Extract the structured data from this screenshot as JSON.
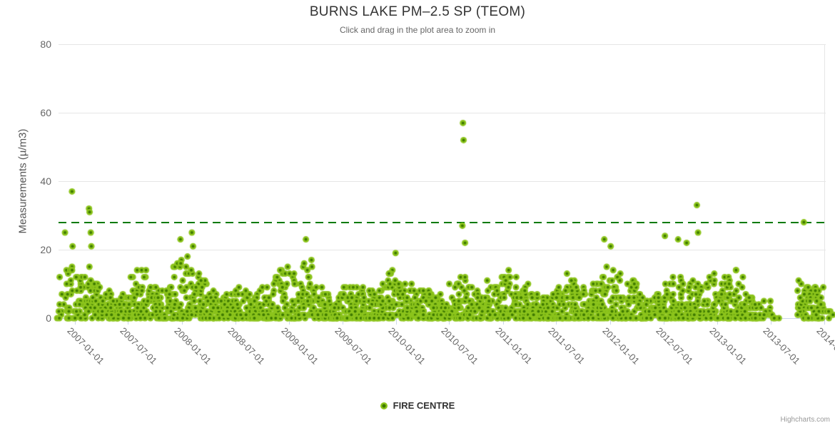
{
  "chart_data": {
    "type": "scatter",
    "title": "BURNS LAKE PM–2.5 SP (TEOM)",
    "subtitle": "Click and drag in the plot area to zoom in",
    "ylabel": "Measurements (µ/m3)",
    "ylim": [
      0,
      80
    ],
    "yticks": [
      0,
      20,
      40,
      60,
      80
    ],
    "xticks": [
      "2007-01-01",
      "2007-07-01",
      "2008-01-01",
      "2008-07-01",
      "2009-01-01",
      "2009-07-01",
      "2010-01-01",
      "2010-07-01",
      "2011-01-01",
      "2011-07-01",
      "2012-01-01",
      "2012-07-01",
      "2013-01-01",
      "2013-07-01",
      "2014-01-01"
    ],
    "x_range": [
      "2006-11-06",
      "2014-01-05"
    ],
    "grid": "horizontal",
    "legend_position": "bottom-center",
    "credits": "Highcharts.com",
    "threshold_line": {
      "value": 28,
      "color": "#007a00",
      "style": "dashed"
    },
    "data_gaps": [
      "2013-07-15 to 2013-10-01"
    ],
    "colors": {
      "marker_outer": "#8cc41c",
      "marker_inner": "#3e7a00",
      "threshold": "#007a00",
      "grid": "#e6e6e6",
      "axis": "#ccd6eb"
    },
    "series": [
      {
        "name": "FIRE CENTRE",
        "marker": "circle-with-dark-center",
        "monthly_density": [
          [
            "2006-11",
            10,
            12
          ],
          [
            "2006-12",
            22,
            16
          ],
          [
            "2007-01",
            26,
            12
          ],
          [
            "2007-02",
            24,
            15
          ],
          [
            "2007-03",
            27,
            10
          ],
          [
            "2007-04",
            26,
            8
          ],
          [
            "2007-05",
            27,
            7
          ],
          [
            "2007-06",
            26,
            8
          ],
          [
            "2007-07",
            27,
            13
          ],
          [
            "2007-08",
            27,
            15
          ],
          [
            "2007-09",
            26,
            10
          ],
          [
            "2007-10",
            27,
            9
          ],
          [
            "2007-11",
            26,
            10
          ],
          [
            "2007-12",
            27,
            17
          ],
          [
            "2008-01",
            27,
            16
          ],
          [
            "2008-02",
            25,
            15
          ],
          [
            "2008-03",
            27,
            11
          ],
          [
            "2008-04",
            26,
            8
          ],
          [
            "2008-05",
            27,
            7
          ],
          [
            "2008-06",
            26,
            8
          ],
          [
            "2008-07",
            27,
            9
          ],
          [
            "2008-08",
            27,
            8
          ],
          [
            "2008-09",
            26,
            9
          ],
          [
            "2008-10",
            27,
            10
          ],
          [
            "2008-11",
            26,
            12
          ],
          [
            "2008-12",
            27,
            16
          ],
          [
            "2009-01",
            27,
            13
          ],
          [
            "2009-02",
            24,
            16
          ],
          [
            "2009-03",
            27,
            16
          ],
          [
            "2009-04",
            26,
            9
          ],
          [
            "2009-05",
            27,
            7
          ],
          [
            "2009-06",
            26,
            8
          ],
          [
            "2009-07",
            27,
            9
          ],
          [
            "2009-08",
            27,
            11
          ],
          [
            "2009-09",
            26,
            9
          ],
          [
            "2009-10",
            27,
            8
          ],
          [
            "2009-11",
            26,
            10
          ],
          [
            "2009-12",
            27,
            14
          ],
          [
            "2010-01",
            27,
            13
          ],
          [
            "2010-02",
            24,
            11
          ],
          [
            "2010-03",
            27,
            9
          ],
          [
            "2010-04",
            26,
            8
          ],
          [
            "2010-05",
            27,
            7
          ],
          [
            "2010-06",
            26,
            9
          ],
          [
            "2010-07",
            27,
            11
          ],
          [
            "2010-08",
            27,
            13
          ],
          [
            "2010-09",
            26,
            9
          ],
          [
            "2010-10",
            27,
            9
          ],
          [
            "2010-11",
            26,
            11
          ],
          [
            "2010-12",
            27,
            13
          ],
          [
            "2011-01",
            27,
            15
          ],
          [
            "2011-02",
            24,
            12
          ],
          [
            "2011-03",
            27,
            11
          ],
          [
            "2011-04",
            26,
            8
          ],
          [
            "2011-05",
            27,
            7
          ],
          [
            "2011-06",
            26,
            8
          ],
          [
            "2011-07",
            27,
            10
          ],
          [
            "2011-08",
            27,
            13
          ],
          [
            "2011-09",
            26,
            9
          ],
          [
            "2011-10",
            27,
            9
          ],
          [
            "2011-11",
            26,
            11
          ],
          [
            "2011-12",
            27,
            16
          ],
          [
            "2012-01",
            27,
            15
          ],
          [
            "2012-02",
            25,
            13
          ],
          [
            "2012-03",
            27,
            11
          ],
          [
            "2012-04",
            26,
            8
          ],
          [
            "2012-05",
            27,
            7
          ],
          [
            "2012-06",
            26,
            9
          ],
          [
            "2012-07",
            27,
            14
          ],
          [
            "2012-08",
            27,
            13
          ],
          [
            "2012-09",
            26,
            11
          ],
          [
            "2012-10",
            27,
            14
          ],
          [
            "2012-11",
            26,
            11
          ],
          [
            "2012-12",
            27,
            13
          ],
          [
            "2013-01",
            27,
            14
          ],
          [
            "2013-02",
            24,
            12
          ],
          [
            "2013-03",
            27,
            14
          ],
          [
            "2013-04",
            26,
            8
          ],
          [
            "2013-05",
            20,
            6
          ],
          [
            "2013-06",
            12,
            5
          ],
          [
            "2013-07",
            6,
            4
          ],
          [
            "2013-10",
            24,
            11
          ],
          [
            "2013-11",
            26,
            10
          ],
          [
            "2013-12",
            30,
            11
          ],
          [
            "2014-01",
            5,
            8
          ]
        ],
        "outliers": [
          [
            "2006-11-28",
            25
          ],
          [
            "2006-12-22",
            37
          ],
          [
            "2006-12-24",
            21
          ],
          [
            "2007-02-18",
            32
          ],
          [
            "2007-02-20",
            31
          ],
          [
            "2007-02-24",
            25
          ],
          [
            "2007-02-26",
            21
          ],
          [
            "2007-12-27",
            23
          ],
          [
            "2008-01-20",
            18
          ],
          [
            "2008-02-04",
            25
          ],
          [
            "2008-02-08",
            21
          ],
          [
            "2009-02-27",
            23
          ],
          [
            "2009-03-18",
            17
          ],
          [
            "2009-12-30",
            19
          ],
          [
            "2010-08-15",
            27
          ],
          [
            "2010-08-17",
            57
          ],
          [
            "2010-08-19",
            52
          ],
          [
            "2010-08-24",
            22
          ],
          [
            "2011-12-12",
            23
          ],
          [
            "2012-01-03",
            21
          ],
          [
            "2012-07-06",
            24
          ],
          [
            "2012-08-20",
            23
          ],
          [
            "2012-09-18",
            22
          ],
          [
            "2012-10-23",
            33
          ],
          [
            "2012-10-27",
            25
          ],
          [
            "2013-10-23",
            28
          ]
        ]
      }
    ]
  }
}
